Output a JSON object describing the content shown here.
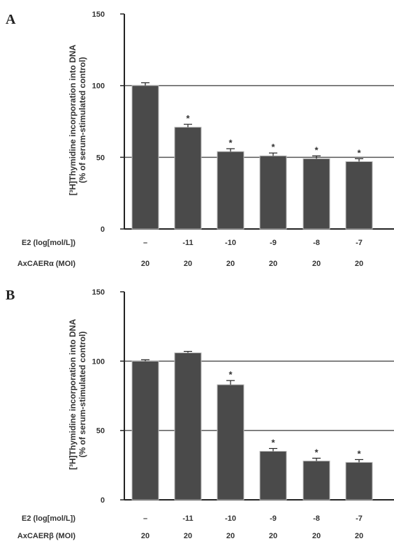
{
  "chart_data": [
    {
      "type": "bar",
      "panel": "A",
      "ylabel_lines": [
        "[³H]Thymidine incorporation into DNA",
        "(% of serum-stimulated control)"
      ],
      "ylim": [
        0,
        150
      ],
      "yticks": [
        0,
        50,
        100,
        150
      ],
      "reference_lines": [
        100,
        50
      ],
      "values": [
        100,
        71,
        54,
        51,
        49,
        47
      ],
      "errors": [
        2,
        2,
        2,
        2,
        2,
        2
      ],
      "significant": [
        false,
        true,
        true,
        true,
        true,
        true
      ],
      "significance_marker": "*",
      "rows": [
        {
          "label": "E2 (log[mol/L])",
          "values": [
            "–",
            "-11",
            "-10",
            "-9",
            "-8",
            "-7"
          ]
        },
        {
          "label": "AxCAERα (MOI)",
          "values": [
            "20",
            "20",
            "20",
            "20",
            "20",
            "20"
          ]
        }
      ],
      "bar_color": "#4a4a4a",
      "grid": false
    },
    {
      "type": "bar",
      "panel": "B",
      "ylabel_lines": [
        "[³H]Thymidine incorporation into DNA",
        "(% of serum-stimulated control)"
      ],
      "ylim": [
        0,
        150
      ],
      "yticks": [
        0,
        50,
        100,
        150
      ],
      "reference_lines": [
        100,
        50
      ],
      "values": [
        100,
        106,
        83,
        35,
        28,
        27
      ],
      "errors": [
        1,
        1,
        3,
        2,
        2,
        2
      ],
      "significant": [
        false,
        false,
        true,
        true,
        true,
        true
      ],
      "significance_marker": "*",
      "rows": [
        {
          "label": "E2 (log[mol/L])",
          "values": [
            "–",
            "-11",
            "-10",
            "-9",
            "-8",
            "-7"
          ]
        },
        {
          "label": "AxCAERβ (MOI)",
          "values": [
            "20",
            "20",
            "20",
            "20",
            "20",
            "20"
          ]
        }
      ],
      "bar_color": "#4a4a4a",
      "grid": false
    }
  ]
}
